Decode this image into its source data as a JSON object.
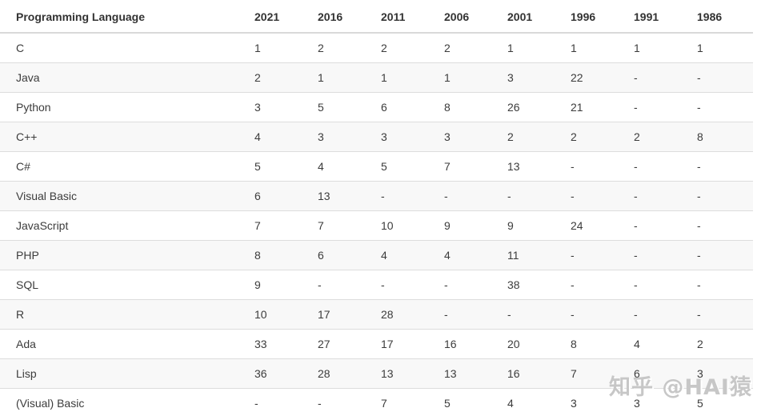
{
  "chart_data": {
    "type": "table",
    "columns": [
      "Programming Language",
      "2021",
      "2016",
      "2011",
      "2006",
      "2001",
      "1996",
      "1991",
      "1986"
    ],
    "rows": [
      [
        "C",
        "1",
        "2",
        "2",
        "2",
        "1",
        "1",
        "1",
        "1"
      ],
      [
        "Java",
        "2",
        "1",
        "1",
        "1",
        "3",
        "22",
        "-",
        "-"
      ],
      [
        "Python",
        "3",
        "5",
        "6",
        "8",
        "26",
        "21",
        "-",
        "-"
      ],
      [
        "C++",
        "4",
        "3",
        "3",
        "3",
        "2",
        "2",
        "2",
        "8"
      ],
      [
        "C#",
        "5",
        "4",
        "5",
        "7",
        "13",
        "-",
        "-",
        "-"
      ],
      [
        "Visual Basic",
        "6",
        "13",
        "-",
        "-",
        "-",
        "-",
        "-",
        "-"
      ],
      [
        "JavaScript",
        "7",
        "7",
        "10",
        "9",
        "9",
        "24",
        "-",
        "-"
      ],
      [
        "PHP",
        "8",
        "6",
        "4",
        "4",
        "11",
        "-",
        "-",
        "-"
      ],
      [
        "SQL",
        "9",
        "-",
        "-",
        "-",
        "38",
        "-",
        "-",
        "-"
      ],
      [
        "R",
        "10",
        "17",
        "28",
        "-",
        "-",
        "-",
        "-",
        "-"
      ],
      [
        "Ada",
        "33",
        "27",
        "17",
        "16",
        "20",
        "8",
        "4",
        "2"
      ],
      [
        "Lisp",
        "36",
        "28",
        "13",
        "13",
        "16",
        "7",
        "6",
        "3"
      ],
      [
        "(Visual) Basic",
        "-",
        "-",
        "7",
        "5",
        "4",
        "3",
        "3",
        "5"
      ]
    ]
  },
  "watermark": {
    "text": "知乎 @HAI猿"
  },
  "colors": {
    "stripe": "#f8f8f8",
    "row_border": "#dddddd",
    "header_border": "#d9d9d9",
    "header_text": "#333333",
    "cell_text": "#3c3c3c",
    "watermark_text": "#c7c7c7"
  }
}
